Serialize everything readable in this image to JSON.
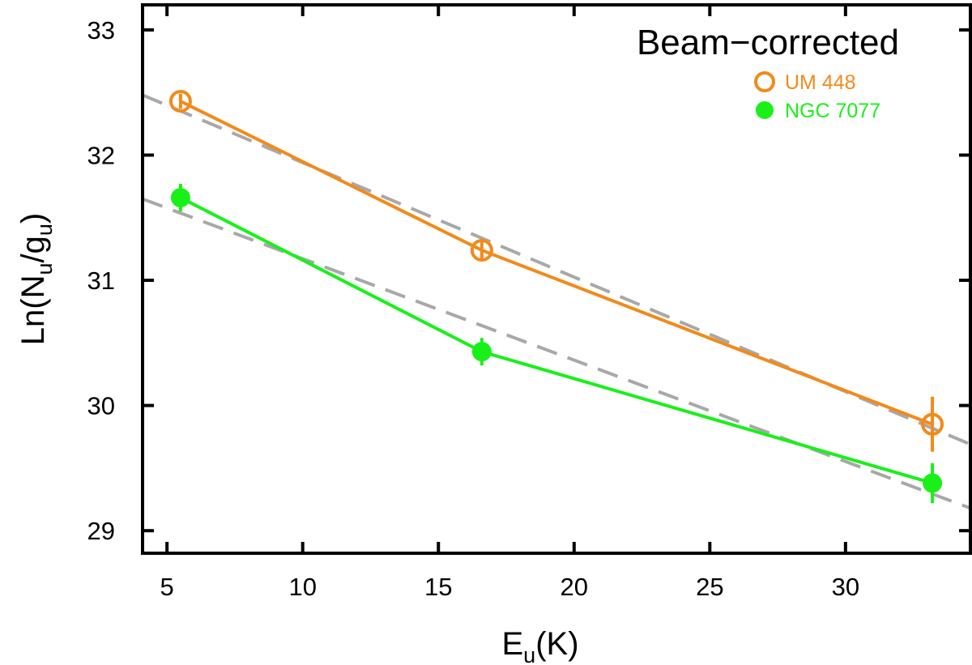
{
  "chart_data": {
    "type": "line",
    "title": "Beam−corrected",
    "xlabel": {
      "main": "E",
      "sub": "u",
      "suffix": "(K)"
    },
    "ylabel": {
      "prefix": "Ln(N",
      "sub1": "u",
      "mid": "/g",
      "sub2": "u",
      "suffix": ")"
    },
    "xlim": [
      4.1,
      34.6
    ],
    "ylim": [
      28.82,
      33.2
    ],
    "xticks": [
      5,
      10,
      15,
      20,
      25,
      30
    ],
    "yticks": [
      29,
      30,
      31,
      32,
      33
    ],
    "legend_position": "top-right",
    "series": [
      {
        "name": "UM 448",
        "color": "#f28a1b",
        "marker": "open-circle",
        "points": [
          {
            "x": 5.5,
            "y": 32.43,
            "err": 0.06
          },
          {
            "x": 16.6,
            "y": 31.24,
            "err": 0.07
          },
          {
            "x": 33.2,
            "y": 29.85,
            "err": 0.22
          }
        ]
      },
      {
        "name": "NGC 7077",
        "color": "#19f019",
        "marker": "filled-circle",
        "points": [
          {
            "x": 5.5,
            "y": 31.66,
            "err": 0.11
          },
          {
            "x": 16.6,
            "y": 30.43,
            "err": 0.11
          },
          {
            "x": 33.2,
            "y": 29.38,
            "err": 0.16
          }
        ]
      }
    ],
    "fits": [
      {
        "name": "UM 448 fit",
        "color": "#a8a8a8",
        "style": "dashed",
        "x": [
          4.1,
          34.6
        ],
        "y": [
          32.48,
          29.69
        ]
      },
      {
        "name": "NGC 7077 fit",
        "color": "#a8a8a8",
        "style": "dashed",
        "x": [
          4.1,
          34.6
        ],
        "y": [
          31.65,
          29.18
        ]
      }
    ]
  }
}
